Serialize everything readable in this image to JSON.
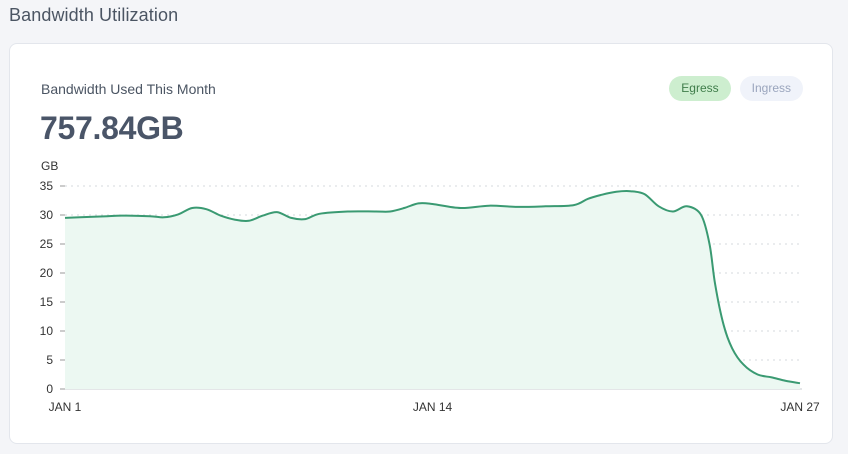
{
  "page": {
    "section_title": "Bandwidth Utilization"
  },
  "card": {
    "label": "Bandwidth Used This Month",
    "value": "757.84GB",
    "toggles": [
      {
        "label": "Egress",
        "active": true
      },
      {
        "label": "Ingress",
        "active": false
      }
    ]
  },
  "colors": {
    "line": "#3a9a72",
    "fill": "#ecf8f2",
    "grid": "#d6d9de"
  },
  "chart_data": {
    "type": "area",
    "ylabel": "GB",
    "ylim": [
      0,
      35
    ],
    "yticks": [
      0,
      5,
      10,
      15,
      20,
      25,
      30,
      35
    ],
    "xlim": [
      1,
      27
    ],
    "xtick_values": [
      1,
      14,
      27
    ],
    "xtick_labels": [
      "JAN 1",
      "JAN 14",
      "JAN 27"
    ],
    "grid": "horizontal-dotted",
    "x": [
      1,
      2,
      2.5,
      3,
      4,
      4.5,
      5,
      5.5,
      6,
      6.5,
      7,
      7.5,
      8,
      8.5,
      9,
      9.5,
      10,
      11,
      12,
      12.5,
      13,
      13.5,
      14,
      15,
      16,
      17,
      18,
      19,
      19.5,
      20,
      20.5,
      21,
      21.5,
      22,
      22.5,
      23,
      23.5,
      23.8,
      24,
      24.3,
      24.6,
      25,
      25.5,
      26,
      26.5,
      27
    ],
    "y": [
      29.5,
      29.7,
      29.8,
      29.9,
      29.8,
      29.6,
      30.1,
      31.2,
      31.0,
      29.9,
      29.2,
      29.0,
      29.9,
      30.5,
      29.5,
      29.3,
      30.2,
      30.6,
      30.6,
      30.6,
      31.2,
      32.0,
      31.9,
      31.2,
      31.6,
      31.4,
      31.5,
      31.7,
      32.8,
      33.5,
      34.0,
      34.1,
      33.6,
      31.5,
      30.6,
      31.5,
      30.0,
      25.0,
      18.0,
      11.0,
      7.0,
      4.2,
      2.5,
      2.0,
      1.4,
      1.0
    ]
  }
}
